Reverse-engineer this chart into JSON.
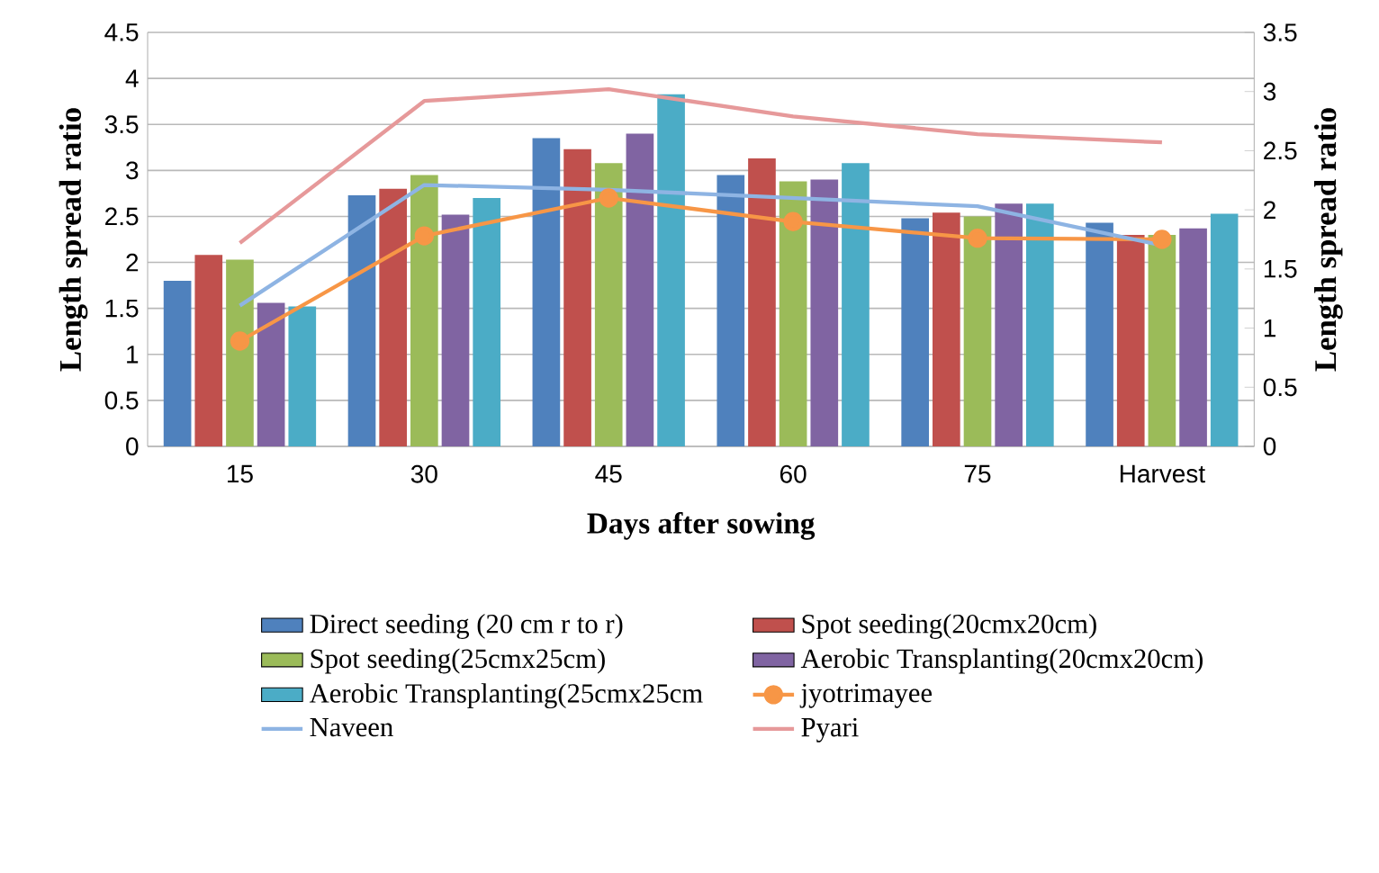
{
  "chart_data": {
    "type": "bar",
    "xlabel": "Days after sowing",
    "ylabel": "Length spread ratio",
    "y2label": "Length spread ratio",
    "categories": [
      "15",
      "30",
      "45",
      "60",
      "75",
      "Harvest"
    ],
    "ylim": [
      0,
      4.5
    ],
    "yticks": [
      0,
      0.5,
      1,
      1.5,
      2,
      2.5,
      3,
      3.5,
      4,
      4.5
    ],
    "y2lim": [
      0,
      3.5
    ],
    "y2ticks": [
      0,
      0.5,
      1,
      1.5,
      2,
      2.5,
      3,
      3.5
    ],
    "grid": "y",
    "legend": "bottom",
    "series": [
      {
        "name": "Direct seeding (20 cm r to r)",
        "color": "#4f81bd",
        "values": [
          1.8,
          2.73,
          3.35,
          2.95,
          2.48,
          2.43
        ]
      },
      {
        "name": "Spot seeding(20cmx20cm)",
        "color": "#c0504d",
        "values": [
          2.08,
          2.8,
          3.23,
          3.13,
          2.54,
          2.3
        ]
      },
      {
        "name": "Spot seeding(25cmx25cm)",
        "color": "#9bbb59",
        "values": [
          2.03,
          2.95,
          3.08,
          2.88,
          2.5,
          2.3
        ]
      },
      {
        "name": "Aerobic Transplanting(20cmx20cm)",
        "color": "#8064a2",
        "values": [
          1.56,
          2.52,
          3.4,
          2.9,
          2.64,
          2.37
        ]
      },
      {
        "name": "Aerobic Transplanting(25cmx25cm",
        "color": "#4bacc6",
        "values": [
          1.52,
          2.7,
          3.83,
          3.08,
          2.64,
          2.53
        ]
      },
      {
        "name": "jyotrimayee",
        "type": "line",
        "axis": "y2",
        "marker": "circle",
        "color": "#f79646",
        "values": [
          0.89,
          1.78,
          2.1,
          1.9,
          1.76,
          1.75
        ]
      },
      {
        "name": "Naveen",
        "type": "line",
        "axis": "y2",
        "color": "#8eb4e3",
        "values": [
          1.19,
          2.21,
          2.17,
          2.1,
          2.03,
          1.7
        ]
      },
      {
        "name": "Pyari",
        "type": "line",
        "axis": "y2",
        "color": "#e6999a",
        "values": [
          1.72,
          2.92,
          3.02,
          2.79,
          2.64,
          2.57
        ]
      }
    ]
  }
}
